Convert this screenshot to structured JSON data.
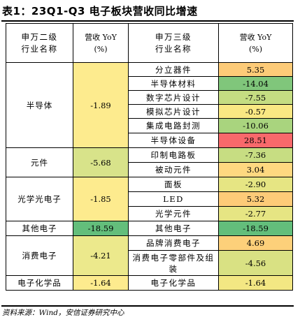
{
  "title": "表1：23Q1-Q3 电子板块营收同比增速",
  "headers": {
    "level2_line1": "申万二级",
    "level2_line2": "行业名称",
    "level2_rev_line1": "营收 YoY",
    "level2_rev_line2": "(%)",
    "level3_line1": "申万三级",
    "level3_line2": "行业名称",
    "level3_rev_line1": "营收 YoY",
    "level3_rev_line2": "(%)"
  },
  "groups": [
    {
      "name": "半导体",
      "value": "-1.89",
      "color": "#fdeb8e",
      "subs": [
        {
          "name": "分立器件",
          "value": "5.35",
          "color": "#fdcb78"
        },
        {
          "name": "半导体材料",
          "value": "-14.04",
          "color": "#80c67b"
        },
        {
          "name": "数字芯片设计",
          "value": "-7.55",
          "color": "#c5dd82"
        },
        {
          "name": "模拟芯片设计",
          "value": "-0.57",
          "color": "#f9e883"
        },
        {
          "name": "集成电路封测",
          "value": "-10.06",
          "color": "#a9d47e"
        },
        {
          "name": "半导体设备",
          "value": "28.51",
          "color": "#f8696b"
        }
      ]
    },
    {
      "name": "元件",
      "value": "-5.68",
      "color": "#d8e38a",
      "subs": [
        {
          "name": "印制电路板",
          "value": "-7.36",
          "color": "#c7dd82"
        },
        {
          "name": "被动元件",
          "value": "3.04",
          "color": "#fed880"
        }
      ]
    },
    {
      "name": "光学光电子",
      "value": "-1.85",
      "color": "#fdeb8e",
      "subs": [
        {
          "name": "面板",
          "value": "-2.90",
          "color": "#e6e583"
        },
        {
          "name": "LED",
          "value": "5.32",
          "color": "#fdcb78"
        },
        {
          "name": "光学元件",
          "value": "-2.77",
          "color": "#e6e583"
        }
      ]
    },
    {
      "name": "其他电子",
      "value": "-18.59",
      "color": "#63be7b",
      "subs": [
        {
          "name": "其他电子",
          "value": "-18.59",
          "color": "#63be7b"
        }
      ]
    },
    {
      "name": "消费电子",
      "value": "-4.21",
      "color": "#ece98c",
      "subs": [
        {
          "name": "品牌消费电子",
          "value": "4.69",
          "color": "#fdd07a"
        },
        {
          "name": "消费电子零部件及组装",
          "value": "-4.56",
          "color": "#d9e183"
        }
      ]
    },
    {
      "name": "电子化学品",
      "value": "-1.64",
      "color": "#fdeb8e",
      "subs": [
        {
          "name": "电子化学品",
          "value": "-1.64",
          "color": "#f3e783"
        }
      ]
    }
  ],
  "source": "资料来源：Wind，安信证券研究中心"
}
